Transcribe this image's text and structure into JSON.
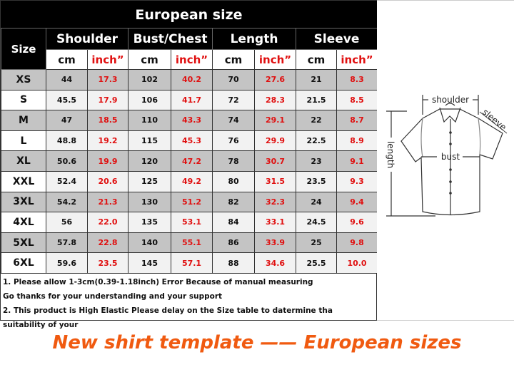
{
  "title": "European size",
  "headers": [
    "Size",
    "Shoulder",
    "Bust/Chest",
    "Length",
    "Sleeve"
  ],
  "units": [
    "cm",
    "inch”",
    "cm",
    "inch”",
    "cm",
    "inch”",
    "cm",
    "inch”"
  ],
  "rows": [
    [
      "XS",
      "44",
      "17.3",
      "102",
      "40.2",
      "70",
      "27.6",
      "21",
      "8.3"
    ],
    [
      "S",
      "45.5",
      "17.9",
      "106",
      "41.7",
      "72",
      "28.3",
      "21.5",
      "8.5"
    ],
    [
      "M",
      "47",
      "18.5",
      "110",
      "43.3",
      "74",
      "29.1",
      "22",
      "8.7"
    ],
    [
      "L",
      "48.8",
      "19.2",
      "115",
      "45.3",
      "76",
      "29.9",
      "22.5",
      "8.9"
    ],
    [
      "XL",
      "50.6",
      "19.9",
      "120",
      "47.2",
      "78",
      "30.7",
      "23",
      "9.1"
    ],
    [
      "XXL",
      "52.4",
      "20.6",
      "125",
      "49.2",
      "80",
      "31.5",
      "23.5",
      "9.3"
    ],
    [
      "3XL",
      "54.2",
      "21.3",
      "130",
      "51.2",
      "82",
      "32.3",
      "24",
      "9.4"
    ],
    [
      "4XL",
      "56",
      "22.0",
      "135",
      "53.1",
      "84",
      "33.1",
      "24.5",
      "9.6"
    ],
    [
      "5XL",
      "57.8",
      "22.8",
      "140",
      "55.1",
      "86",
      "33.9",
      "25",
      "9.8"
    ],
    [
      "6XL",
      "59.6",
      "23.5",
      "145",
      "57.1",
      "88",
      "34.6",
      "25.5",
      "10.0"
    ]
  ],
  "notes": [
    "1. Please allow 1-3cm(0.39-1.18inch) Error Because of manual measuring",
    "Go thanks for your understanding and your support",
    "2. This product is High Elastic  Please delay on the Size table to datermine tha suitability of your"
  ],
  "diagram": {
    "shoulder": "shoulder",
    "sleeve": "sleeve",
    "bust": "bust",
    "length": "length"
  },
  "caption": "New shirt template —— European sizes",
  "colors": {
    "inch_text": "#e01010",
    "caption": "#f05a10",
    "header_bg": "#000000",
    "row_grey": "#c4c4c4"
  }
}
